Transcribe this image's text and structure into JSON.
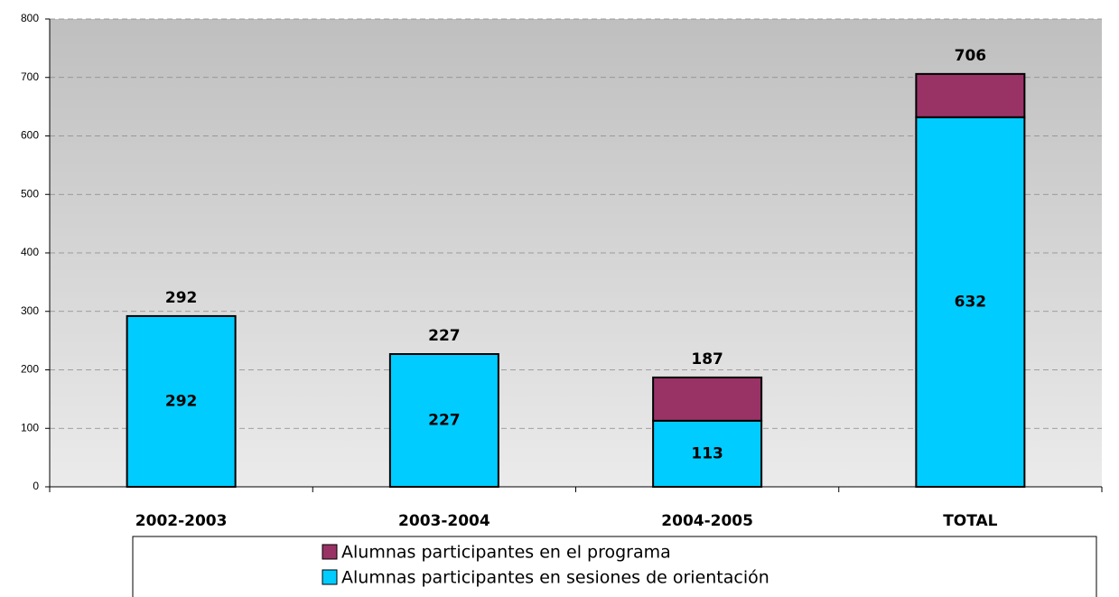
{
  "chart_data": {
    "type": "stacked-bar",
    "categories": [
      "2002-2003",
      "2003-2004",
      "2004-2005",
      "TOTAL"
    ],
    "series": [
      {
        "name": "Alumnas participantes en sesiones de orientación",
        "color": "#00ccff",
        "values": [
          292,
          227,
          113,
          632
        ]
      },
      {
        "name": "Alumnas participantes en el programa",
        "color": "#993366",
        "values": [
          0,
          0,
          74,
          74
        ]
      }
    ],
    "totals": [
      292,
      227,
      187,
      706
    ],
    "ylim": [
      0,
      800
    ],
    "yticks": [
      0,
      100,
      200,
      300,
      400,
      500,
      600,
      700,
      800
    ],
    "grid": true
  }
}
